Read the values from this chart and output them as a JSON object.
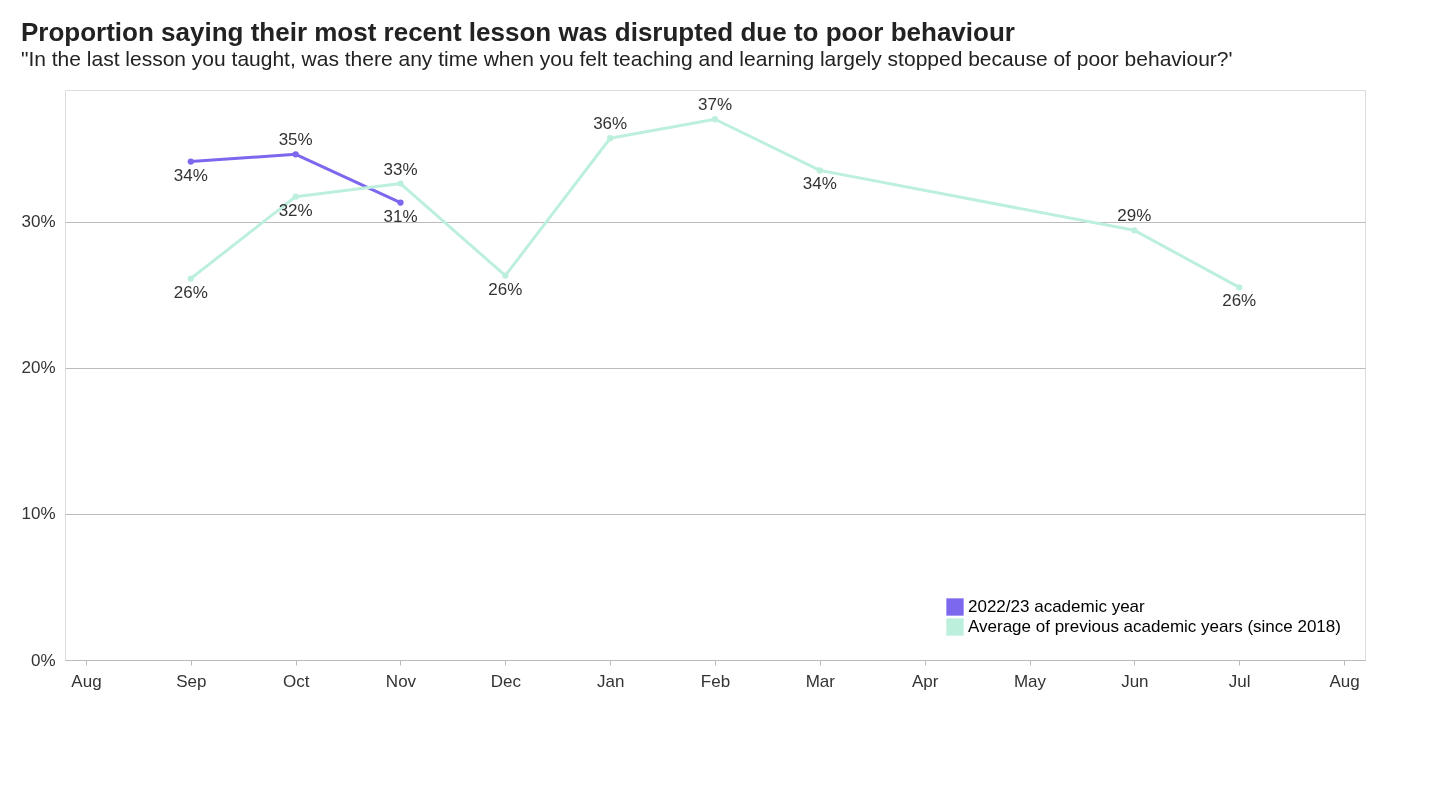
{
  "chart_data": {
    "type": "line",
    "title": "Proportion saying their most recent lesson was disrupted due to poor behaviour",
    "subtitle": "\"In the last lesson you taught, was there any time when you felt teaching and learning largely stopped because of poor behaviour?'",
    "categories": [
      "Aug",
      "Sep",
      "Oct",
      "Nov",
      "Dec",
      "Jan",
      "Feb",
      "Mar",
      "Apr",
      "May",
      "Jun",
      "Jul",
      "Aug"
    ],
    "series": [
      {
        "name": "2022/23 academic year",
        "color": "#7b68ee",
        "values": [
          null,
          34.1,
          34.6,
          31.3,
          null,
          null,
          null,
          null,
          null,
          null,
          null,
          null,
          null
        ],
        "value_labels": [
          null,
          "34%",
          "35%",
          "31%",
          null,
          null,
          null,
          null,
          null,
          null,
          null,
          null,
          null
        ]
      },
      {
        "name": "Average of previous academic years (since 2018)",
        "color": "#bdf0dc",
        "values": [
          null,
          26.1,
          31.7,
          32.6,
          26.3,
          35.7,
          37.0,
          33.5,
          null,
          null,
          29.4,
          25.5,
          null
        ],
        "value_labels": [
          null,
          "26%",
          "32%",
          "33%",
          "26%",
          "36%",
          "37%",
          "34%",
          null,
          null,
          "29%",
          "26%",
          null
        ]
      }
    ],
    "ylim": [
      0,
      39
    ],
    "yticks": [
      {
        "value": 0,
        "label": "0%"
      },
      {
        "value": 10,
        "label": "10%"
      },
      {
        "value": 20,
        "label": "20%"
      },
      {
        "value": 30,
        "label": "30%"
      }
    ],
    "grid": "y",
    "legend": "bottom right",
    "marker": "circle",
    "line_style": "solid"
  }
}
